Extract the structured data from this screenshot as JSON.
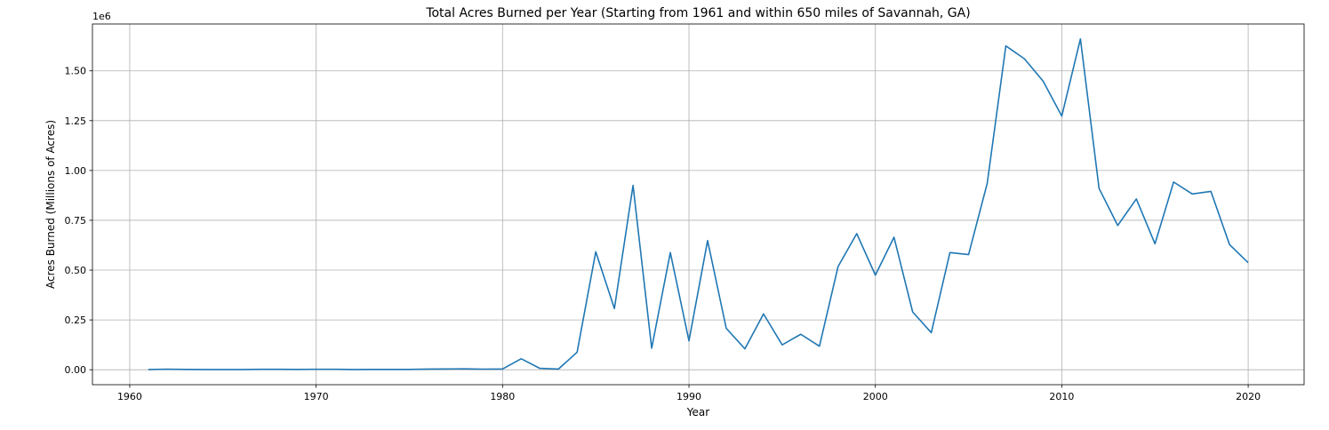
{
  "chart_data": {
    "type": "line",
    "title": "Total Acres Burned per Year (Starting from 1961 and within 650 miles of Savannah, GA)",
    "xlabel": "Year",
    "ylabel": "Acres Burned (Millions of Acres)",
    "y_offset_label": "1e6",
    "xlim": [
      1958,
      2023
    ],
    "ylim": [
      -75000,
      1735000
    ],
    "grid": true,
    "x_ticks": [
      1960,
      1970,
      1980,
      1990,
      2000,
      2010,
      2020
    ],
    "x_tick_labels": [
      "1960",
      "1970",
      "1980",
      "1990",
      "2000",
      "2010",
      "2020"
    ],
    "y_ticks": [
      0,
      250000,
      500000,
      750000,
      1000000,
      1250000,
      1500000
    ],
    "y_tick_labels": [
      "0.00",
      "0.25",
      "0.50",
      "0.75",
      "1.00",
      "1.25",
      "1.50"
    ],
    "line_color": "#1f77b4",
    "series": [
      {
        "x": [
          1961,
          1962,
          1963,
          1964,
          1965,
          1966,
          1967,
          1968,
          1969,
          1970,
          1971,
          1972,
          1973,
          1974,
          1975,
          1976,
          1977,
          1978,
          1979,
          1980,
          1981,
          1982,
          1983,
          1984,
          1985,
          1986,
          1987,
          1988,
          1989,
          1990,
          1991,
          1992,
          1993,
          1994,
          1995,
          1996,
          1997,
          1998,
          1999,
          2000,
          2001,
          2002,
          2003,
          2004,
          2005,
          2006,
          2007,
          2008,
          2009,
          2010,
          2011,
          2012,
          2013,
          2014,
          2015,
          2016,
          2017,
          2018,
          2019,
          2020
        ],
        "y": [
          1000,
          3000,
          1500,
          1000,
          1000,
          1000,
          2000,
          2000,
          1500,
          2500,
          2500,
          1000,
          1500,
          1500,
          1500,
          3500,
          4000,
          4500,
          3000,
          4000,
          55000,
          7000,
          3500,
          88000,
          592000,
          307000,
          925000,
          108000,
          588000,
          145000,
          648000,
          208000,
          105000,
          280000,
          125000,
          178000,
          118000,
          518000,
          683000,
          475000,
          665000,
          290000,
          186000,
          588000,
          578000,
          935000,
          1625000,
          1560000,
          1448000,
          1273000,
          1660000,
          910000,
          724000,
          857000,
          632000,
          942000,
          882000,
          895000,
          628000,
          537000
        ]
      }
    ]
  }
}
